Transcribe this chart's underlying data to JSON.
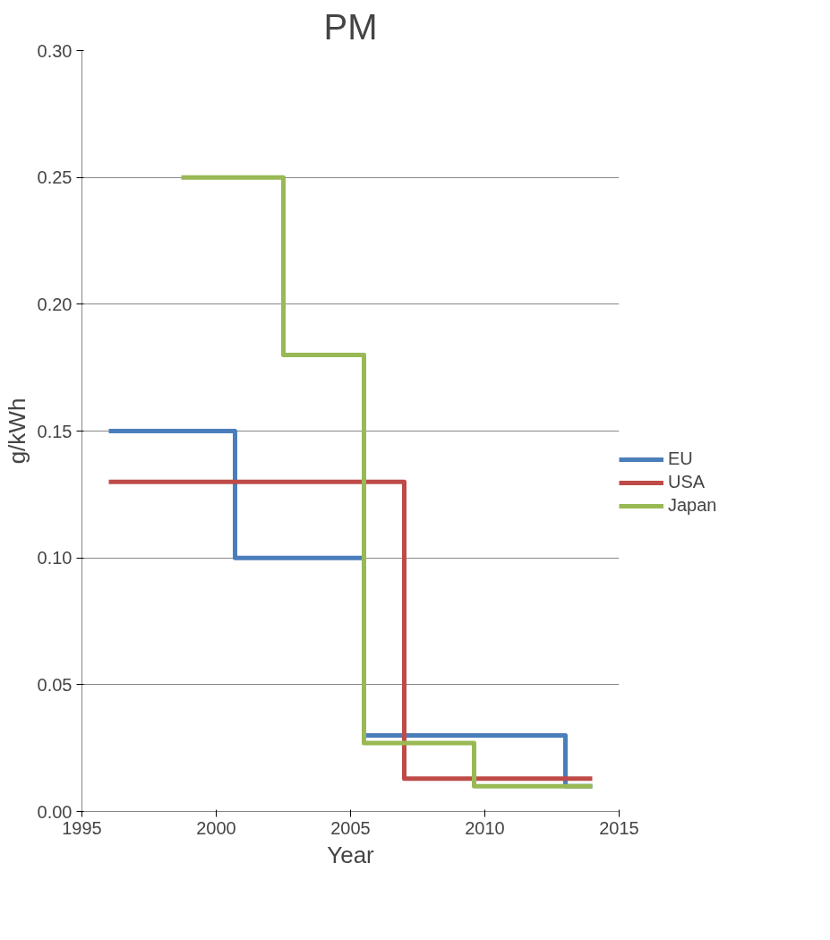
{
  "chart_data": {
    "type": "step",
    "title": "PM",
    "xlabel": "Year",
    "ylabel": "g/kWh",
    "series": [
      {
        "name": "EU",
        "color": "#4a7ebb",
        "x": [
          1996,
          2000.7,
          2005.5,
          2013,
          2014
        ],
        "values": [
          0.15,
          0.1,
          0.03,
          0.01,
          0.01
        ]
      },
      {
        "name": "USA",
        "color": "#be4b48",
        "x": [
          1996,
          2007,
          2014
        ],
        "values": [
          0.13,
          0.013,
          0.013
        ]
      },
      {
        "name": "Japan",
        "color": "#98b954",
        "x": [
          1998.7,
          2002.5,
          2005.5,
          2009.6,
          2014
        ],
        "values": [
          0.25,
          0.18,
          0.027,
          0.01,
          0.01
        ]
      }
    ],
    "xlim": [
      1995,
      2015
    ],
    "xticks": [
      1995,
      2000,
      2005,
      2010,
      2015
    ],
    "ylim": [
      0,
      0.3
    ],
    "yticks": [
      {
        "value": 0,
        "label": "0.00"
      },
      {
        "value": 0.05,
        "label": "0.05"
      },
      {
        "value": 0.1,
        "label": "0.10"
      },
      {
        "value": 0.15,
        "label": "0.15"
      },
      {
        "value": 0.2,
        "label": "0.20"
      },
      {
        "value": 0.25,
        "label": "0.25"
      },
      {
        "value": 0.3,
        "label": "0.30"
      }
    ],
    "grid": "y",
    "legend": "right"
  }
}
